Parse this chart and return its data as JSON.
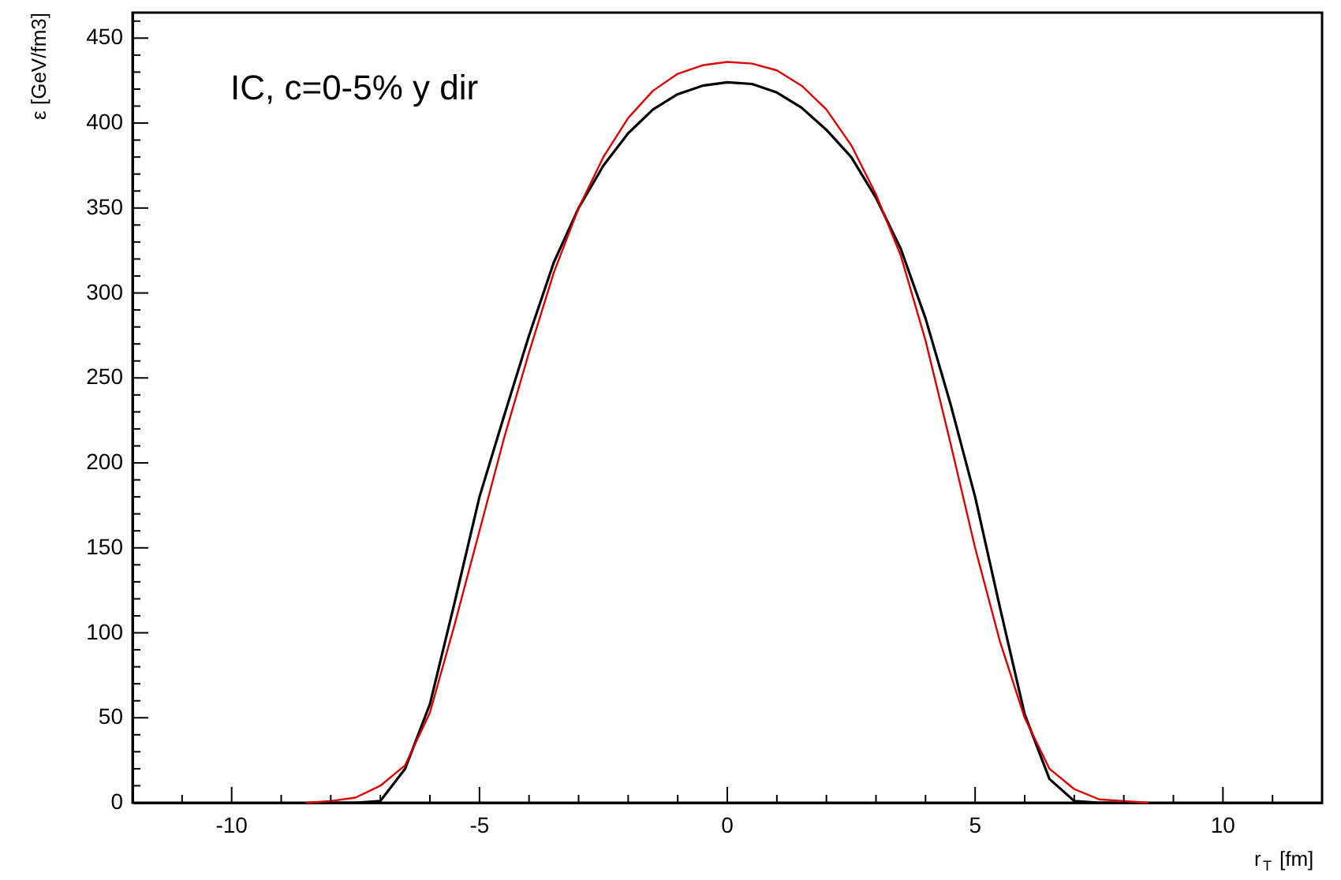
{
  "chart_data": {
    "type": "line",
    "xlabel": "r$_{T}$ [fm]",
    "ylabel": "ε [GeV/fm3]",
    "annotations": [
      "IC, c=0-5% y dir"
    ],
    "xlim": [
      -12,
      12
    ],
    "ylim": [
      0,
      465
    ],
    "xticks": [
      {
        "value": -12,
        "label": null
      },
      {
        "value": -11,
        "label": null
      },
      -10,
      {
        "value": -9,
        "label": null
      },
      {
        "value": -8,
        "label": null
      },
      {
        "value": -7,
        "label": null
      },
      {
        "value": -6,
        "label": null
      },
      -5,
      {
        "value": -4,
        "label": null
      },
      {
        "value": -3,
        "label": null
      },
      {
        "value": -2,
        "label": null
      },
      {
        "value": -1,
        "label": null
      },
      0,
      {
        "value": 1,
        "label": null
      },
      {
        "value": 2,
        "label": null
      },
      {
        "value": 3,
        "label": null
      },
      {
        "value": 4,
        "label": null
      },
      5,
      {
        "value": 6,
        "label": null
      },
      {
        "value": 7,
        "label": null
      },
      {
        "value": 8,
        "label": null
      },
      {
        "value": 9,
        "label": null
      },
      10,
      {
        "value": 11,
        "label": null
      }
    ],
    "yticks": [
      0,
      {
        "value": 10,
        "label": null
      },
      {
        "value": 20,
        "label": null
      },
      {
        "value": 30,
        "label": null
      },
      {
        "value": 40,
        "label": null
      },
      50,
      {
        "value": 60,
        "label": null
      },
      {
        "value": 70,
        "label": null
      },
      {
        "value": 80,
        "label": null
      },
      {
        "value": 90,
        "label": null
      },
      100,
      {
        "value": 110,
        "label": null
      },
      {
        "value": 120,
        "label": null
      },
      {
        "value": 130,
        "label": null
      },
      {
        "value": 140,
        "label": null
      },
      150,
      {
        "value": 160,
        "label": null
      },
      {
        "value": 170,
        "label": null
      },
      {
        "value": 180,
        "label": null
      },
      {
        "value": 190,
        "label": null
      },
      200,
      {
        "value": 210,
        "label": null
      },
      {
        "value": 220,
        "label": null
      },
      {
        "value": 230,
        "label": null
      },
      {
        "value": 240,
        "label": null
      },
      250,
      {
        "value": 260,
        "label": null
      },
      {
        "value": 270,
        "label": null
      },
      {
        "value": 280,
        "label": null
      },
      {
        "value": 290,
        "label": null
      },
      300,
      {
        "value": 310,
        "label": null
      },
      {
        "value": 320,
        "label": null
      },
      {
        "value": 330,
        "label": null
      },
      {
        "value": 340,
        "label": null
      },
      350,
      {
        "value": 360,
        "label": null
      },
      {
        "value": 370,
        "label": null
      },
      {
        "value": 380,
        "label": null
      },
      {
        "value": 390,
        "label": null
      },
      400,
      {
        "value": 410,
        "label": null
      },
      {
        "value": 420,
        "label": null
      },
      {
        "value": 430,
        "label": null
      },
      {
        "value": 440,
        "label": null
      },
      450,
      {
        "value": 460,
        "label": null
      }
    ],
    "grid": false,
    "marker": "none",
    "line_style": "solid",
    "series": [
      {
        "color": "#000000",
        "x": [
          -8,
          -7.5,
          -7,
          -6.5,
          -6,
          -5.5,
          -5,
          -4.5,
          -4,
          -3.5,
          -3,
          -2.5,
          -2,
          -1.5,
          -1,
          -0.5,
          0,
          0.5,
          1,
          1.5,
          2,
          2.5,
          3,
          3.5,
          4,
          4.5,
          5,
          5.5,
          6,
          6.5,
          7,
          7.5,
          8
        ],
        "values": [
          0,
          0,
          1,
          20,
          58,
          118,
          180,
          228,
          275,
          318,
          350,
          375,
          394,
          408,
          417,
          422,
          424,
          423,
          418,
          409,
          396,
          380,
          356,
          326,
          285,
          235,
          180,
          115,
          52,
          14,
          1,
          0,
          0
        ]
      },
      {
        "color": "#e00000",
        "x": [
          -8.5,
          -8,
          -7.5,
          -7,
          -6.5,
          -6,
          -5.5,
          -5,
          -4.5,
          -4,
          -3.5,
          -3,
          -2.5,
          -2,
          -1.5,
          -1,
          -0.5,
          0,
          0.5,
          1,
          1.5,
          2,
          2.5,
          3,
          3.5,
          4,
          4.5,
          5,
          5.5,
          6,
          6.5,
          7,
          7.5,
          8,
          8.5
        ],
        "values": [
          0,
          1,
          3,
          10,
          22,
          53,
          105,
          160,
          215,
          265,
          312,
          350,
          380,
          403,
          419,
          429,
          434,
          436,
          435,
          431,
          422,
          408,
          387,
          358,
          322,
          272,
          212,
          150,
          95,
          50,
          20,
          8,
          2,
          1,
          0
        ]
      }
    ]
  }
}
